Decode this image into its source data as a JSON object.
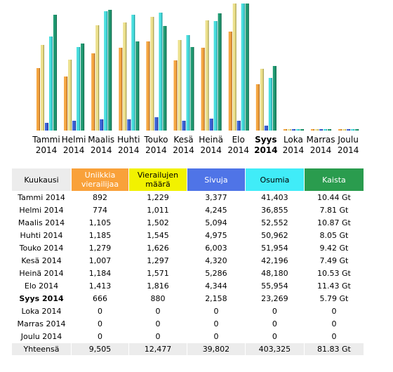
{
  "chart_data": {
    "type": "bar",
    "categories": [
      [
        "Tammi",
        "2014"
      ],
      [
        "Helmi",
        "2014"
      ],
      [
        "Maalis",
        "2014"
      ],
      [
        "Huhti",
        "2014"
      ],
      [
        "Touko",
        "2014"
      ],
      [
        "Kesä",
        "2014"
      ],
      [
        "Heinä",
        "2014"
      ],
      [
        "Elo",
        "2014"
      ],
      [
        "Syys",
        "2014"
      ],
      [
        "Loka",
        "2014"
      ],
      [
        "Marras",
        "2014"
      ],
      [
        "Joulu",
        "2014"
      ]
    ],
    "current_index": 8,
    "series": [
      {
        "key": "visitors",
        "color": "#f5a642",
        "values": [
          892,
          774,
          1105,
          1185,
          1279,
          1007,
          1184,
          1413,
          666,
          0,
          0,
          0
        ]
      },
      {
        "key": "visits",
        "color": "#ece08c",
        "values": [
          1229,
          1011,
          1502,
          1545,
          1626,
          1297,
          1571,
          1816,
          880,
          0,
          0,
          0
        ]
      },
      {
        "key": "pages",
        "color": "#3b62d6",
        "values": [
          3377,
          4245,
          5094,
          4975,
          6003,
          4320,
          5286,
          4344,
          2158,
          0,
          0,
          0
        ]
      },
      {
        "key": "hits",
        "color": "#49dede",
        "values": [
          41403,
          36855,
          52552,
          50962,
          51954,
          42196,
          48180,
          55954,
          23269,
          0,
          0,
          0
        ]
      },
      {
        "key": "bandwidth_gb",
        "color": "#209a72",
        "values": [
          10.44,
          7.81,
          10.87,
          8.05,
          9.42,
          7.49,
          10.53,
          11.43,
          5.79,
          0,
          0,
          0
        ]
      }
    ],
    "scale_max": {
      "visitors": 1816,
      "visits": 1816,
      "pages": 55954,
      "hits": 55954,
      "bandwidth_gb": 11.43
    },
    "grid": false,
    "legend": "none"
  },
  "table": {
    "headers": {
      "month": "Kuukausi",
      "visitors": [
        "Uniikkia",
        "vierailijaa"
      ],
      "visits": [
        "Vierailujen",
        "määrä"
      ],
      "pages": "Sivuja",
      "hits": "Osumia",
      "bandwidth": "Kaista"
    },
    "rows": [
      {
        "month": "Tammi 2014",
        "visitors": "892",
        "visits": "1,229",
        "pages": "3,377",
        "hits": "41,403",
        "bandwidth": "10.44 Gt"
      },
      {
        "month": "Helmi 2014",
        "visitors": "774",
        "visits": "1,011",
        "pages": "4,245",
        "hits": "36,855",
        "bandwidth": "7.81 Gt"
      },
      {
        "month": "Maalis 2014",
        "visitors": "1,105",
        "visits": "1,502",
        "pages": "5,094",
        "hits": "52,552",
        "bandwidth": "10.87 Gt"
      },
      {
        "month": "Huhti 2014",
        "visitors": "1,185",
        "visits": "1,545",
        "pages": "4,975",
        "hits": "50,962",
        "bandwidth": "8.05 Gt"
      },
      {
        "month": "Touko 2014",
        "visitors": "1,279",
        "visits": "1,626",
        "pages": "6,003",
        "hits": "51,954",
        "bandwidth": "9.42 Gt"
      },
      {
        "month": "Kesä 2014",
        "visitors": "1,007",
        "visits": "1,297",
        "pages": "4,320",
        "hits": "42,196",
        "bandwidth": "7.49 Gt"
      },
      {
        "month": "Heinä 2014",
        "visitors": "1,184",
        "visits": "1,571",
        "pages": "5,286",
        "hits": "48,180",
        "bandwidth": "10.53 Gt"
      },
      {
        "month": "Elo 2014",
        "visitors": "1,413",
        "visits": "1,816",
        "pages": "4,344",
        "hits": "55,954",
        "bandwidth": "11.43 Gt"
      },
      {
        "month": "Syys 2014",
        "visitors": "666",
        "visits": "880",
        "pages": "2,158",
        "hits": "23,269",
        "bandwidth": "5.79 Gt",
        "current": true
      },
      {
        "month": "Loka 2014",
        "visitors": "0",
        "visits": "0",
        "pages": "0",
        "hits": "0",
        "bandwidth": "0"
      },
      {
        "month": "Marras 2014",
        "visitors": "0",
        "visits": "0",
        "pages": "0",
        "hits": "0",
        "bandwidth": "0"
      },
      {
        "month": "Joulu 2014",
        "visitors": "0",
        "visits": "0",
        "pages": "0",
        "hits": "0",
        "bandwidth": "0"
      }
    ],
    "total": {
      "month": "Yhteensä",
      "visitors": "9,505",
      "visits": "12,477",
      "pages": "39,802",
      "hits": "403,325",
      "bandwidth": "81.83 Gt"
    }
  }
}
